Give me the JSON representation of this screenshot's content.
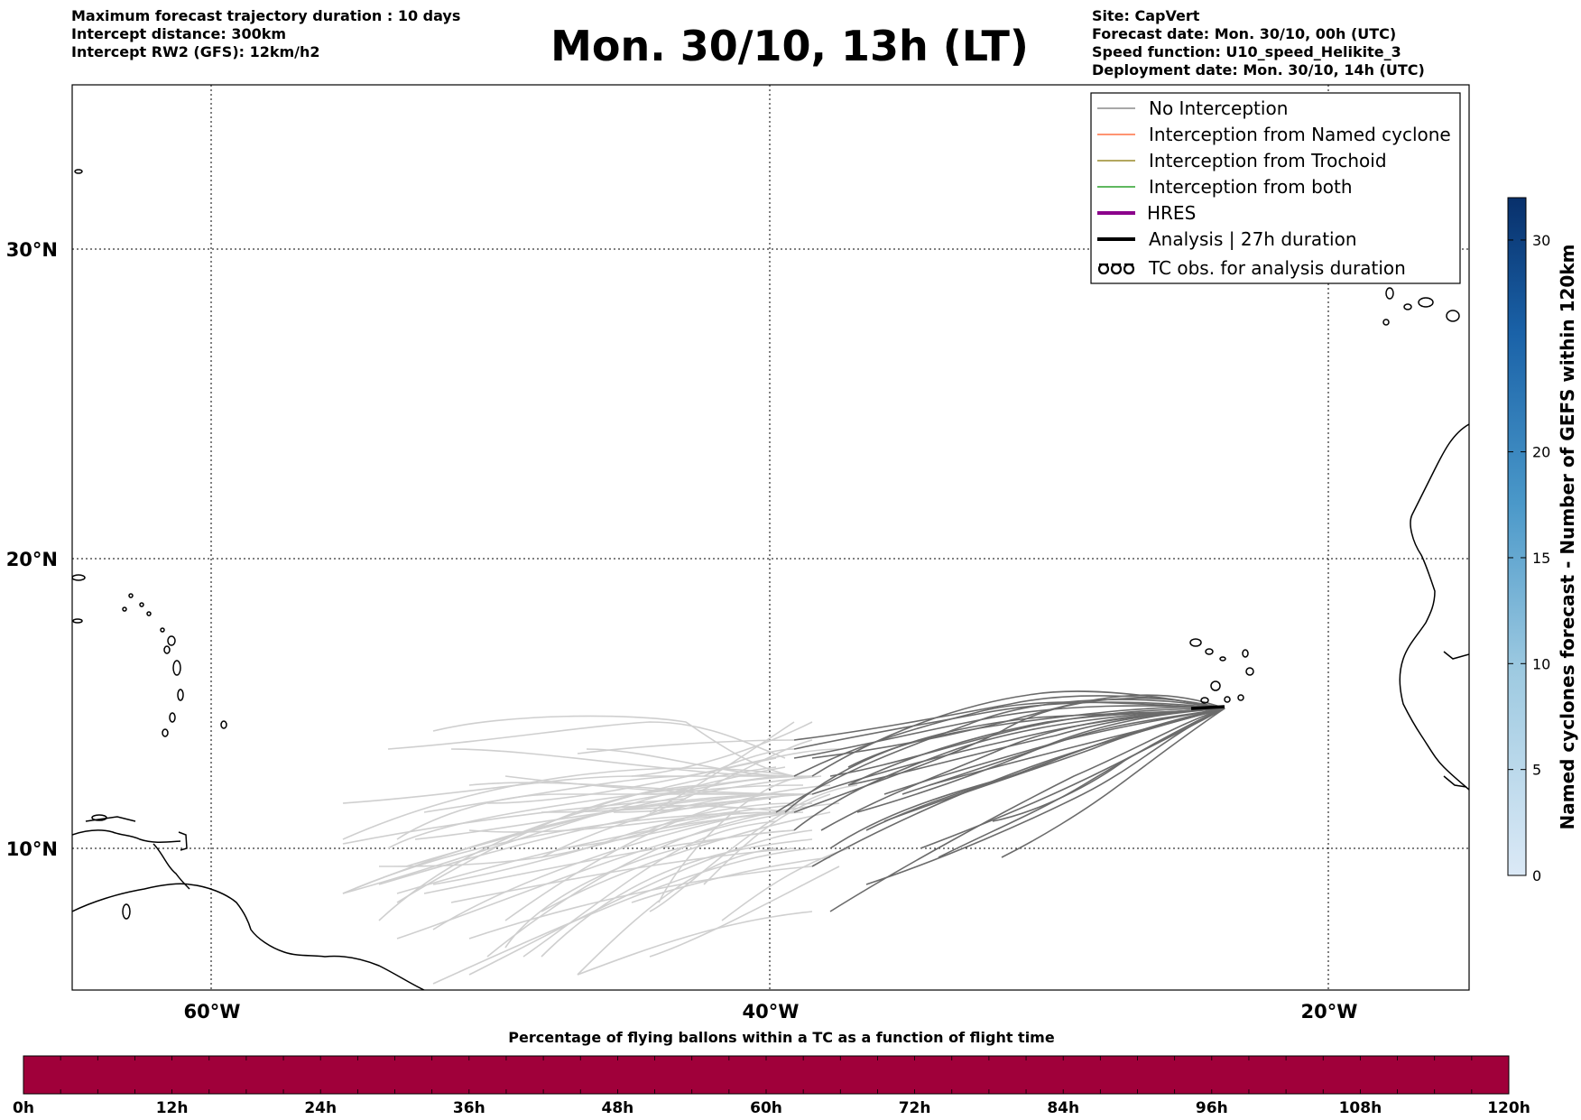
{
  "header": {
    "left_lines": [
      "Maximum forecast trajectory duration : 10 days",
      "Intercept distance: 300km",
      "Intercept RW2 (GFS):  12km/h2"
    ],
    "right_lines": [
      "Site: CapVert",
      "Forecast date: Mon. 30/10, 00h (UTC)",
      "Speed function: U10_speed_Helikite_3",
      "Deployment date: Mon. 30/10, 14h (UTC)"
    ],
    "title": "Mon. 30/10, 13h (LT)"
  },
  "map": {
    "lat_labels": [
      "30°N",
      "20°N",
      "10°N"
    ],
    "lon_labels": [
      "60°W",
      "40°W",
      "20°W"
    ],
    "extent": {
      "lon_min": -65,
      "lon_max": -15,
      "lat_min": 5.4,
      "lat_max": 35.3
    },
    "gridlines": true,
    "colors": {
      "no_interception_recent": "#6b6b6b",
      "no_interception_old": "#cfcfcf",
      "analysis": "#000000"
    }
  },
  "legend": {
    "position": "top-right",
    "items": [
      {
        "label": "No Interception",
        "color": "#8c8c8c",
        "style": "thin"
      },
      {
        "label": "Interception from Named cyclone",
        "color": "#ff7043",
        "style": "thin"
      },
      {
        "label": "Interception from Trochoid",
        "color": "#9a8a2a",
        "style": "thin"
      },
      {
        "label": "Interception from both",
        "color": "#2ca02c",
        "style": "thin"
      },
      {
        "label": "HRES",
        "color": "#8b008b",
        "style": "thick"
      },
      {
        "label": "Analysis | 27h duration",
        "color": "#000000",
        "style": "thick"
      },
      {
        "label": "TC obs. for analysis duration",
        "color": "#000000",
        "style": "symbol",
        "symbol": "ᦞᦞᦞ"
      }
    ]
  },
  "colorbar_right": {
    "label": "Named cyclones forecast - Number of GEFS within 120km",
    "ticks": [
      "0",
      "5",
      "10",
      "15",
      "20",
      "30"
    ],
    "tick_values": [
      0,
      5,
      10,
      15,
      20,
      30
    ],
    "range": [
      0,
      32
    ],
    "color_low": "#dbe9f6",
    "color_high": "#08306b"
  },
  "colorbar_bottom": {
    "title": "Percentage of flying ballons within a TC as a function of flight time",
    "ticks": [
      "0h",
      "12h",
      "24h",
      "36h",
      "48h",
      "60h",
      "72h",
      "84h",
      "96h",
      "108h",
      "120h"
    ],
    "fill_color": "#a0003a"
  }
}
